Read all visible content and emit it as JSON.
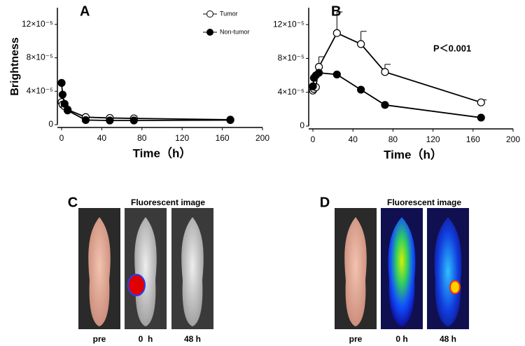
{
  "chart_data": [
    {
      "type": "line",
      "panel": "A",
      "xlabel": "Time（h）",
      "ylabel": "Brightness",
      "x": [
        0,
        1,
        3,
        6,
        24,
        48,
        72,
        168
      ],
      "series": [
        {
          "name": "Tumor",
          "color": "#000000",
          "marker": "open",
          "values": [
            2.7e-05,
            2.4e-05,
            2.2e-05,
            1.8e-05,
            9e-06,
            8e-06,
            7.5e-06,
            6e-06
          ]
        },
        {
          "name": "Non-tumor",
          "color": "#000000",
          "marker": "filled",
          "values": [
            5e-05,
            3.6e-05,
            2.5e-05,
            1.7e-05,
            5.5e-06,
            5e-06,
            5e-06,
            5.5e-06
          ]
        }
      ],
      "xlim": [
        0,
        200
      ],
      "xticks": [
        0,
        40,
        80,
        120,
        160,
        200
      ],
      "ylim": [
        0,
        0.00014
      ],
      "yticks": [
        0,
        {
          "value": 4e-05,
          "label": "4×10⁻⁵"
        },
        {
          "value": 8e-05,
          "label": "8×10⁻⁵"
        },
        {
          "value": 0.00012,
          "label": "12×10⁻⁵"
        }
      ],
      "legend": "top-right"
    },
    {
      "type": "line",
      "panel": "B",
      "xlabel": "Time（h）",
      "annotation": "P＜0.001",
      "x": [
        0,
        1,
        3,
        6,
        24,
        48,
        72,
        168
      ],
      "series": [
        {
          "color": "#000000",
          "marker": "open",
          "values": [
            4.2e-05,
            4.4e-05,
            4.6e-05,
            7e-05,
            0.00011,
            9.7e-05,
            6.4e-05,
            2.8e-05
          ],
          "errors": [
            null,
            null,
            null,
            1.2e-05,
            2.5e-05,
            1.5e-05,
            9e-06,
            3e-06
          ]
        },
        {
          "color": "#000000",
          "marker": "filled",
          "values": [
            4.7e-05,
            5.7e-05,
            6e-05,
            6.3e-05,
            6.1e-05,
            4.3e-05,
            2.5e-05,
            1e-05
          ]
        }
      ],
      "xlim": [
        0,
        200
      ],
      "xticks": [
        0,
        40,
        80,
        120,
        160,
        200
      ],
      "ylim": [
        0,
        0.00014
      ],
      "yticks": [
        0,
        {
          "value": 4e-05,
          "label": "4×10⁻⁵"
        },
        {
          "value": 8e-05,
          "label": "8×10⁻⁵"
        },
        {
          "value": 0.00012,
          "label": "12×10⁻⁵"
        }
      ]
    }
  ],
  "images": [
    {
      "panel": "C",
      "caption": "Fluorescent image",
      "labels": [
        "pre",
        "0  h",
        "48 h"
      ]
    },
    {
      "panel": "D",
      "caption": "Fluorescent image",
      "labels": [
        "pre",
        "0 h",
        "48 h"
      ]
    }
  ]
}
